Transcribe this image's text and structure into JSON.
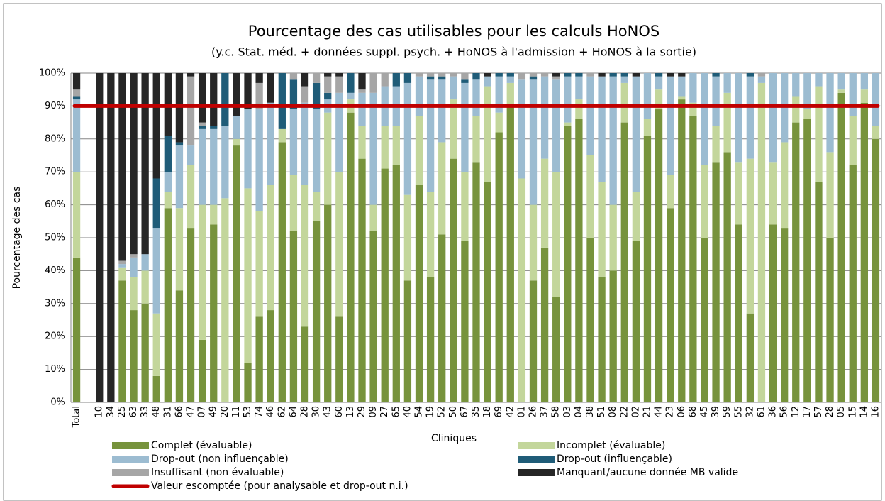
{
  "chart_data": {
    "type": "stacked_bar",
    "title": "Pourcentage des cas utilisables pour les calculs HoNOS",
    "subtitle": "(y.c. Stat. méd. + données suppl. psych. + HoNOS à l'admission + HoNOS à la sortie)",
    "y_label": "Pourcentage des cas",
    "x_label": "Cliniques",
    "ylim": [
      0,
      100
    ],
    "yticks": [
      {
        "value": 0,
        "label": "0%"
      },
      {
        "value": 10,
        "label": "10%"
      },
      {
        "value": 20,
        "label": "20%"
      },
      {
        "value": 30,
        "label": "30%"
      },
      {
        "value": 40,
        "label": "40%"
      },
      {
        "value": 50,
        "label": "50%"
      },
      {
        "value": 60,
        "label": "60%"
      },
      {
        "value": 70,
        "label": "70%"
      },
      {
        "value": 80,
        "label": "80%"
      },
      {
        "value": 90,
        "label": "90%"
      },
      {
        "value": 100,
        "label": "100%"
      }
    ],
    "grid": true,
    "categories": [
      "Total",
      null,
      "10",
      "34",
      "25",
      "63",
      "33",
      "48",
      "31",
      "66",
      "47",
      "07",
      "49",
      "20",
      "11",
      "53",
      "74",
      "46",
      "62",
      "64",
      "28",
      "30",
      "43",
      "60",
      "13",
      "29",
      "09",
      "27",
      "65",
      "40",
      "54",
      "19",
      "52",
      "50",
      "67",
      "35",
      "18",
      "69",
      "42",
      "01",
      "26",
      "37",
      "58",
      "03",
      "04",
      "38",
      "51",
      "08",
      "22",
      "02",
      "21",
      "44",
      "23",
      "06",
      "68",
      "45",
      "39",
      "59",
      "55",
      "32",
      "61",
      "36",
      "56",
      "12",
      "17",
      "57",
      "28",
      "05",
      "15",
      "14",
      "16"
    ],
    "series": [
      {
        "name": "Complet (évaluable)",
        "color": "#77933c",
        "values": [
          44,
          null,
          0,
          0,
          37,
          28,
          30,
          8,
          59,
          34,
          53,
          19,
          54,
          0,
          78,
          12,
          26,
          28,
          79,
          52,
          23,
          55,
          60,
          26,
          88,
          74,
          52,
          71,
          72,
          37,
          66,
          38,
          51,
          74,
          49,
          73,
          67,
          82,
          90,
          0,
          37,
          47,
          32,
          84,
          86,
          50,
          38,
          40,
          85,
          49,
          81,
          89,
          59,
          92,
          87,
          50,
          73,
          76,
          54,
          27,
          0,
          54,
          53,
          85,
          86,
          67,
          50,
          94,
          72,
          91,
          80
        ]
      },
      {
        "name": "Incomplet (évaluable)",
        "color": "#c3d69b",
        "values": [
          26,
          null,
          0,
          0,
          4,
          10,
          10,
          19,
          5,
          25,
          19,
          41,
          6,
          62,
          2,
          53,
          32,
          38,
          4,
          17,
          43,
          9,
          28,
          44,
          4,
          10,
          8,
          13,
          12,
          26,
          21,
          26,
          28,
          18,
          21,
          14,
          29,
          6,
          7,
          68,
          23,
          27,
          38,
          1,
          6,
          25,
          29,
          20,
          12,
          15,
          5,
          6,
          10,
          1,
          4,
          22,
          11,
          18,
          19,
          47,
          97,
          19,
          26,
          8,
          3,
          29,
          26,
          1,
          15,
          4,
          4
        ]
      },
      {
        "name": "Drop-out (non influençable)",
        "color": "#9cbcd1",
        "values": [
          22,
          null,
          0,
          0,
          1,
          6,
          5,
          26,
          6,
          19,
          6,
          23,
          23,
          22,
          7,
          24,
          31,
          25,
          0,
          20,
          25,
          25,
          4,
          24,
          2,
          10,
          34,
          12,
          12,
          34,
          12,
          34,
          19,
          7,
          27,
          11,
          3,
          11,
          2,
          30,
          38,
          25,
          28,
          14,
          7,
          24,
          32,
          39,
          2,
          35,
          14,
          4,
          30,
          6,
          9,
          28,
          15,
          6,
          27,
          25,
          2,
          27,
          21,
          7,
          11,
          4,
          24,
          5,
          13,
          5,
          16
        ]
      },
      {
        "name": "Drop-out (influençable)",
        "color": "#1f5c78",
        "values": [
          1,
          null,
          0,
          0,
          0,
          0,
          0,
          15,
          11,
          1,
          0,
          1,
          1,
          16,
          0,
          0,
          0,
          0,
          17,
          9,
          0,
          8,
          2,
          0,
          6,
          0,
          0,
          0,
          4,
          3,
          0,
          1,
          1,
          0,
          1,
          2,
          0,
          1,
          1,
          0,
          1,
          0,
          0,
          1,
          1,
          0,
          0,
          1,
          1,
          0,
          0,
          1,
          0,
          0,
          0,
          0,
          1,
          0,
          0,
          1,
          0,
          0,
          0,
          0,
          0,
          0,
          0,
          0,
          0,
          0,
          0
        ]
      },
      {
        "name": "Insuffisant (non évaluable)",
        "color": "#a6a6a6",
        "values": [
          2,
          null,
          0,
          0,
          1,
          1,
          0,
          0,
          0,
          0,
          21,
          1,
          0,
          0,
          0,
          0,
          8,
          0,
          0,
          2,
          5,
          3,
          5,
          5,
          0,
          1,
          6,
          4,
          0,
          0,
          1,
          1,
          1,
          1,
          2,
          0,
          0,
          0,
          0,
          2,
          1,
          1,
          1,
          0,
          0,
          1,
          0,
          0,
          0,
          0,
          0,
          0,
          0,
          0,
          0,
          0,
          0,
          0,
          0,
          0,
          1,
          0,
          0,
          0,
          0,
          0,
          0,
          0,
          0,
          0,
          0
        ]
      },
      {
        "name": "Manquant/aucune donnée MB valide",
        "color": "#262626",
        "values": [
          5,
          null,
          100,
          100,
          57,
          55,
          55,
          32,
          19,
          21,
          1,
          15,
          16,
          0,
          13,
          11,
          3,
          9,
          0,
          0,
          4,
          0,
          1,
          1,
          0,
          5,
          0,
          0,
          0,
          0,
          0,
          0,
          0,
          0,
          0,
          0,
          1,
          0,
          0,
          0,
          0,
          0,
          1,
          0,
          0,
          0,
          1,
          0,
          0,
          1,
          0,
          0,
          1,
          1,
          0,
          0,
          0,
          0,
          0,
          0,
          0,
          0,
          0,
          0,
          0,
          0,
          0,
          0,
          0,
          0,
          0
        ]
      }
    ],
    "reference": {
      "name": "Valeur escomptée (pour analysable et drop-out n.i.)",
      "value": 90,
      "color": "#c00000"
    }
  }
}
